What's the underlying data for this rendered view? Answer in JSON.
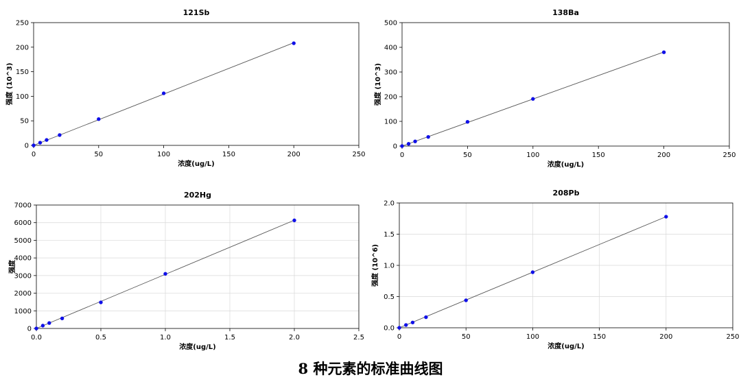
{
  "caption": "8 种元素的标准曲线图",
  "colors": {
    "point": "#1010e8",
    "line": "#555555",
    "axis": "#000000",
    "grid": "#d8d8d8",
    "text": "#000000"
  },
  "chart_data": [
    {
      "type": "scatter",
      "title": "121Sb",
      "xlabel": "浓度(ug/L)",
      "ylabel": "强度 (10^3)",
      "xlim": [
        0,
        250
      ],
      "ylim": [
        0,
        250
      ],
      "xticks": [
        0,
        50,
        100,
        150,
        200,
        250
      ],
      "yticks": [
        0,
        50,
        100,
        150,
        200,
        250
      ],
      "xtick_labels": [
        "0",
        "50",
        "100",
        "150",
        "200",
        "250"
      ],
      "ytick_labels": [
        "0",
        "50",
        "100",
        "150",
        "200",
        "250"
      ],
      "grid": false,
      "x": [
        0,
        5,
        10,
        20,
        50,
        100,
        200
      ],
      "y": [
        0,
        5.5,
        11,
        21,
        53.5,
        106,
        208
      ],
      "fit_line": {
        "x": [
          0,
          200
        ],
        "y": [
          0,
          209
        ]
      }
    },
    {
      "type": "scatter",
      "title": "138Ba",
      "xlabel": "浓度(ug/L)",
      "ylabel": "强度 (10^3)",
      "xlim": [
        0,
        250
      ],
      "ylim": [
        0,
        500
      ],
      "xticks": [
        0,
        50,
        100,
        150,
        200,
        250
      ],
      "yticks": [
        0,
        100,
        200,
        300,
        400,
        500
      ],
      "xtick_labels": [
        "0",
        "50",
        "100",
        "150",
        "200",
        "250"
      ],
      "ytick_labels": [
        "0",
        "100",
        "200",
        "300",
        "400",
        "500"
      ],
      "grid": false,
      "x": [
        0,
        5,
        10,
        20,
        50,
        100,
        200
      ],
      "y": [
        0,
        9,
        19,
        37,
        98,
        191,
        380
      ],
      "fit_line": {
        "x": [
          0,
          200
        ],
        "y": [
          0,
          381
        ]
      }
    },
    {
      "type": "scatter",
      "title": "202Hg",
      "xlabel": "浓度(ug/L)",
      "ylabel": "强度",
      "xlim": [
        0,
        2.5
      ],
      "ylim": [
        0,
        7000
      ],
      "xticks": [
        0,
        0.5,
        1.0,
        1.5,
        2.0,
        2.5
      ],
      "yticks": [
        0,
        1000,
        2000,
        3000,
        4000,
        5000,
        6000,
        7000
      ],
      "xtick_labels": [
        "0.0",
        "0.5",
        "1.0",
        "1.5",
        "2.0",
        "2.5"
      ],
      "ytick_labels": [
        "0",
        "1000",
        "2000",
        "3000",
        "4000",
        "5000",
        "6000",
        "7000"
      ],
      "grid": true,
      "x": [
        0,
        0.05,
        0.1,
        0.2,
        0.5,
        1.0,
        2.0
      ],
      "y": [
        0,
        160,
        310,
        570,
        1480,
        3100,
        6130
      ],
      "fit_line": {
        "x": [
          0,
          2.0
        ],
        "y": [
          0,
          6140
        ]
      }
    },
    {
      "type": "scatter",
      "title": "208Pb",
      "xlabel": "浓度(ug/L)",
      "ylabel": "强度 (10^6)",
      "xlim": [
        0,
        250
      ],
      "ylim": [
        0,
        2.0
      ],
      "xticks": [
        0,
        50,
        100,
        150,
        200,
        250
      ],
      "yticks": [
        0,
        0.5,
        1.0,
        1.5,
        2.0
      ],
      "xtick_labels": [
        "0",
        "50",
        "100",
        "150",
        "200",
        "250"
      ],
      "ytick_labels": [
        "0.0",
        "0.5",
        "1.0",
        "1.5",
        "2.0"
      ],
      "grid": true,
      "x": [
        0,
        5,
        10,
        20,
        50,
        100,
        200
      ],
      "y": [
        0,
        0.045,
        0.085,
        0.17,
        0.44,
        0.89,
        1.78
      ],
      "fit_line": {
        "x": [
          0,
          200
        ],
        "y": [
          0,
          1.78
        ]
      }
    }
  ]
}
